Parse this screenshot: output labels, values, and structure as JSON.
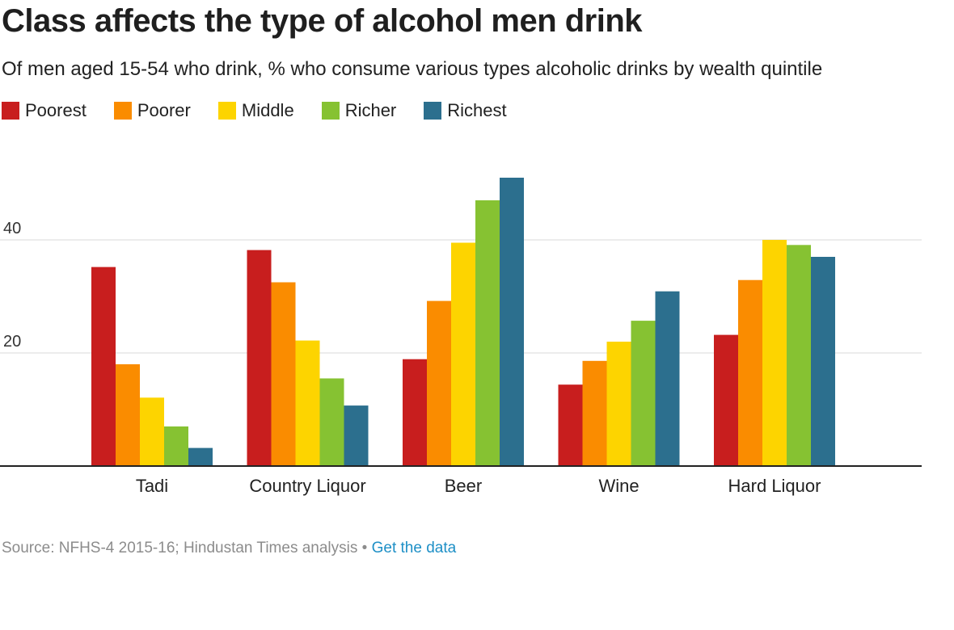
{
  "title": "Class affects the type of alcohol men drink",
  "subtitle": "Of men aged 15-54 who drink, % who consume various types alcoholic drinks by wealth quintile",
  "footer": {
    "source": "Source: NFHS-4 2015-16; Hindustan Times analysis",
    "separator": " • ",
    "link_label": "Get the data"
  },
  "colors": {
    "Poorest": "#c81e1e",
    "Poorer": "#fa8c00",
    "Middle": "#fdd400",
    "Richer": "#86c232",
    "Richest": "#2c6f8e",
    "link": "#1d8fc6"
  },
  "chart_data": {
    "type": "bar",
    "title": "Class affects the type of alcohol men drink",
    "subtitle": "Of men aged 15-54 who drink, % who consume various types alcoholic drinks by wealth quintile",
    "categories": [
      "Tadi",
      "Country Liquor",
      "Beer",
      "Wine",
      "Hard Liquor"
    ],
    "series": [
      {
        "name": "Poorest",
        "values": [
          35.2,
          38.2,
          18.9,
          14.4,
          23.2
        ]
      },
      {
        "name": "Poorer",
        "values": [
          18.0,
          32.5,
          29.2,
          18.6,
          32.9
        ]
      },
      {
        "name": "Middle",
        "values": [
          12.1,
          22.2,
          39.5,
          22.0,
          40.0
        ]
      },
      {
        "name": "Richer",
        "values": [
          7.0,
          15.5,
          47.0,
          25.7,
          39.1
        ]
      },
      {
        "name": "Richest",
        "values": [
          3.2,
          10.7,
          51.0,
          30.9,
          37.0
        ]
      }
    ],
    "yticks": [
      20,
      40
    ],
    "ylim": [
      0,
      55
    ],
    "grid": true,
    "legend": "top-left",
    "xlabel": "",
    "ylabel": ""
  }
}
